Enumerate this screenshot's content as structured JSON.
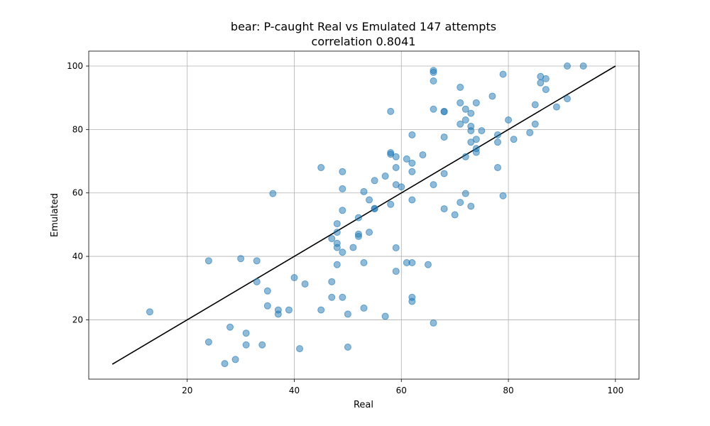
{
  "chart_data": {
    "type": "scatter",
    "title": "bear: P-caught Real vs Emulated 147 attempts",
    "subtitle": "correlation 0.8041",
    "xlabel": "Real",
    "ylabel": "Emulated",
    "xlim": [
      1.6,
      104.4
    ],
    "ylim": [
      1.3,
      104.7
    ],
    "xticks": [
      "20",
      "40",
      "60",
      "80",
      "100"
    ],
    "yticks": [
      "20",
      "40",
      "60",
      "80",
      "100"
    ],
    "grid": true,
    "point_color": "#1f77b4",
    "line_color": "#000000",
    "reference_line": {
      "x": [
        6,
        100
      ],
      "y": [
        6,
        100
      ]
    },
    "points": {
      "x": [
        13,
        24,
        24,
        27,
        28,
        29,
        30,
        31,
        31,
        33,
        33,
        34,
        35,
        35,
        36,
        37,
        37,
        39,
        40,
        41,
        42,
        45,
        45,
        47,
        47,
        47,
        48,
        48,
        48,
        48,
        48,
        49,
        49,
        49,
        49,
        49,
        50,
        50,
        51,
        52,
        52,
        52,
        53,
        53,
        53,
        54,
        54,
        55,
        55,
        55,
        57,
        57,
        58,
        58,
        58,
        58,
        59,
        59,
        59,
        59,
        59,
        60,
        61,
        61,
        62,
        62,
        62,
        62,
        62,
        62,
        62,
        64,
        65,
        66,
        66,
        66,
        66,
        66,
        66,
        68,
        68,
        68,
        68,
        68,
        70,
        71,
        71,
        71,
        71,
        72,
        72,
        72,
        72,
        73,
        73,
        73,
        73,
        73,
        74,
        74,
        74,
        74,
        75,
        77,
        78,
        78,
        78,
        79,
        79,
        80,
        81,
        84,
        85,
        85,
        86,
        86,
        87,
        87,
        89,
        91,
        91,
        94
      ],
      "y": [
        22.5,
        38.6,
        13,
        6.2,
        17.7,
        7.5,
        39.3,
        15.8,
        12.1,
        38.6,
        32,
        12.1,
        24.4,
        29.1,
        59.8,
        23.1,
        21.8,
        23.1,
        33.3,
        10.9,
        31.3,
        23.1,
        68,
        45.6,
        32,
        27.1,
        50.3,
        47.6,
        44.1,
        42.8,
        37.4,
        66.7,
        61.3,
        54.5,
        41.3,
        27.1,
        21.8,
        11.4,
        42.8,
        52.2,
        47,
        46.3,
        60.4,
        38,
        23.7,
        57.8,
        47.6,
        63.9,
        55.1,
        55,
        65.3,
        21.1,
        85.7,
        72.7,
        72.2,
        56.4,
        71.4,
        68,
        62.6,
        42.7,
        35.3,
        61.9,
        70.7,
        38,
        78.3,
        69.4,
        66.7,
        57.8,
        38,
        27.1,
        25.8,
        72,
        37.4,
        98.6,
        98,
        95.3,
        86.4,
        62.6,
        19,
        85.7,
        85.6,
        77.6,
        66.1,
        55,
        53.1,
        93.3,
        88.4,
        81.7,
        57,
        86.4,
        83,
        71.4,
        59.8,
        85.1,
        81,
        79.6,
        76,
        55.8,
        88.4,
        76.9,
        74,
        72.8,
        79.6,
        90.5,
        78.3,
        76,
        68,
        97.4,
        59.1,
        83,
        76.9,
        79,
        87.8,
        81.7,
        96.7,
        94.7,
        96,
        92.6,
        87.1,
        100,
        89.7,
        100
      ]
    }
  }
}
